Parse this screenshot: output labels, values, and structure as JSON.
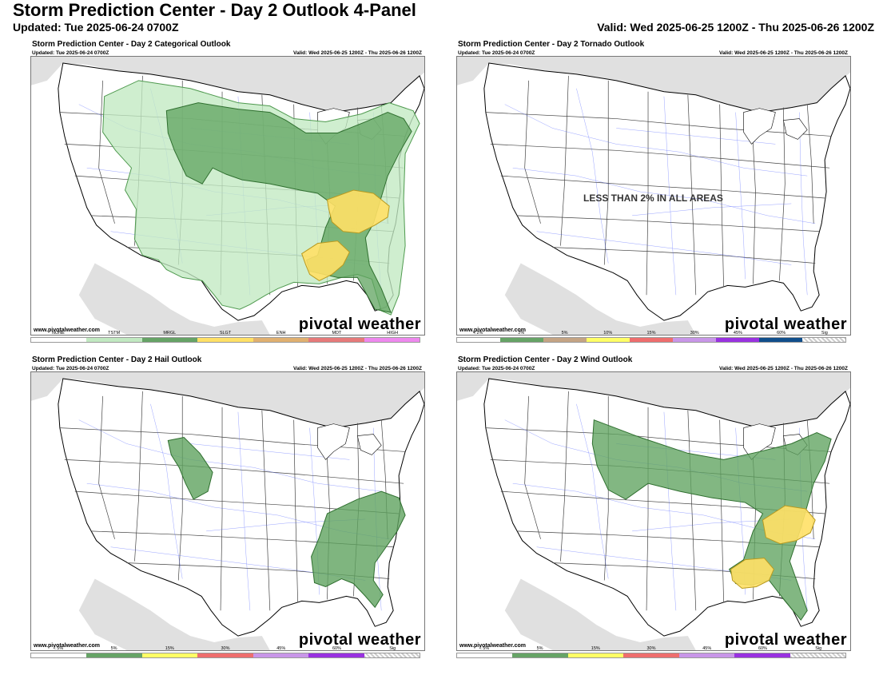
{
  "header": {
    "title": "Storm Prediction Center - Day 2 Outlook 4-Panel",
    "updated": "Updated: Tue 2025-06-24 0700Z",
    "valid": "Valid: Wed 2025-06-25 1200Z - Thu 2025-06-26 1200Z"
  },
  "panels": [
    {
      "title": "Storm Prediction Center - Day 2 Categorical Outlook",
      "updated": "Updated: Tue 2025-06-24 0700Z",
      "valid": "Valid: Wed 2025-06-25 1200Z - Thu 2025-06-26 1200Z",
      "credit": "www.pivotalweather.com",
      "brand": "pivotal weather",
      "legend": [
        {
          "label": "NONE",
          "color": "#ffffff"
        },
        {
          "label": "TSTM",
          "color": "#c1e9c1"
        },
        {
          "label": "MRGL",
          "color": "#66a366"
        },
        {
          "label": "SLGT",
          "color": "#ffe066"
        },
        {
          "label": "ENH",
          "color": "#e0b070"
        },
        {
          "label": "MDT",
          "color": "#e67a7a"
        },
        {
          "label": "HIGH",
          "color": "#ee88ee"
        }
      ]
    },
    {
      "title": "Storm Prediction Center - Day 2 Tornado Outlook",
      "updated": "Updated: Tue 2025-06-24 0700Z",
      "valid": "Valid: Wed 2025-06-25 1200Z - Thu 2025-06-26 1200Z",
      "credit": "www.pivotalweather.com",
      "brand": "pivotal weather",
      "notice": "LESS THAN 2% IN ALL AREAS",
      "legend": [
        {
          "label": "< 2%",
          "color": "#ffffff"
        },
        {
          "label": "2%",
          "color": "#66a366"
        },
        {
          "label": "5%",
          "color": "#c4a484"
        },
        {
          "label": "10%",
          "color": "#ffff66"
        },
        {
          "label": "15%",
          "color": "#ee6e6e"
        },
        {
          "label": "30%",
          "color": "#c896e8"
        },
        {
          "label": "45%",
          "color": "#9932e0"
        },
        {
          "label": "60%",
          "color": "#104e8b"
        },
        {
          "label": "Sig",
          "color": "hatch"
        }
      ]
    },
    {
      "title": "Storm Prediction Center - Day 2 Hail Outlook",
      "updated": "Updated: Tue 2025-06-24 0700Z",
      "valid": "Valid: Wed 2025-06-25 1200Z - Thu 2025-06-26 1200Z",
      "credit": "www.pivotalweather.com",
      "brand": "pivotal weather",
      "legend": [
        {
          "label": "< 5%",
          "color": "#ffffff"
        },
        {
          "label": "5%",
          "color": "#66a366"
        },
        {
          "label": "15%",
          "color": "#ffff66"
        },
        {
          "label": "30%",
          "color": "#ee6e6e"
        },
        {
          "label": "45%",
          "color": "#c896e8"
        },
        {
          "label": "60%",
          "color": "#9932e0"
        },
        {
          "label": "Sig",
          "color": "hatch"
        }
      ]
    },
    {
      "title": "Storm Prediction Center - Day 2 Wind Outlook",
      "updated": "Updated: Tue 2025-06-24 0700Z",
      "valid": "Valid: Wed 2025-06-25 1200Z - Thu 2025-06-26 1200Z",
      "credit": "www.pivotalweather.com",
      "brand": "pivotal weather",
      "legend": [
        {
          "label": "< 5%",
          "color": "#ffffff"
        },
        {
          "label": "5%",
          "color": "#66a366"
        },
        {
          "label": "15%",
          "color": "#ffff66"
        },
        {
          "label": "30%",
          "color": "#ee6e6e"
        },
        {
          "label": "45%",
          "color": "#c896e8"
        },
        {
          "label": "60%",
          "color": "#9932e0"
        },
        {
          "label": "Sig",
          "color": "hatch"
        }
      ]
    }
  ]
}
